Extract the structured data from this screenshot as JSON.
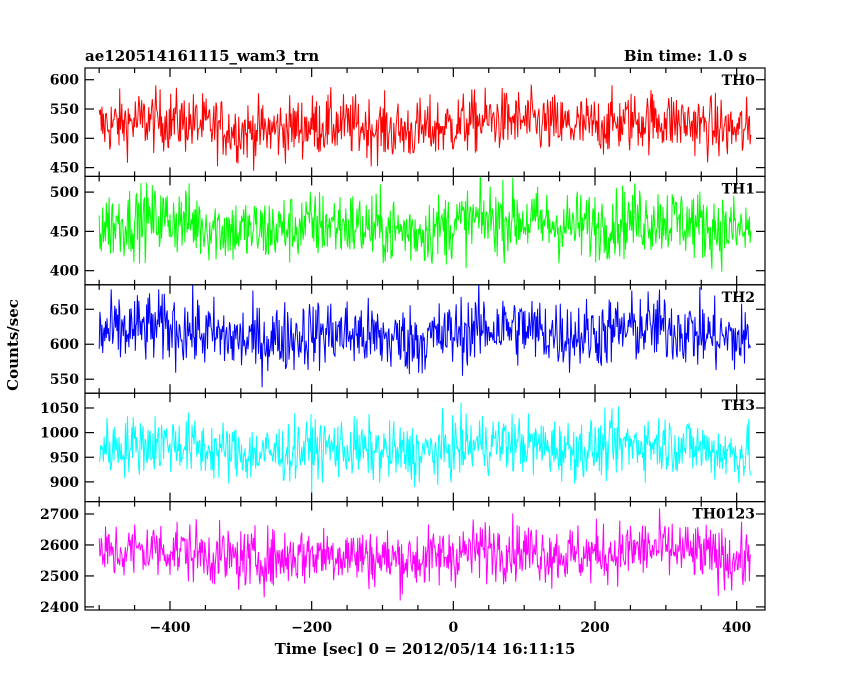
{
  "header": {
    "left_title": "ae120514161115_wam3_trn",
    "right_title": "Bin time: 1.0 s"
  },
  "chart_data": {
    "type": "line",
    "title": "ae120514161115_wam3_trn",
    "subtitle": "Bin time: 1.0 s",
    "xlabel": "Time [sec] 0 = 2012/05/14 16:11:15",
    "ylabel": "Counts/sec",
    "xlim": [
      -520,
      440
    ],
    "data_xrange": [
      -500,
      420
    ],
    "x_ticks": [
      -400,
      -200,
      0,
      200,
      400
    ],
    "x_tick_labels": [
      "−400",
      "−200",
      "0",
      "200",
      "400"
    ],
    "grid": false,
    "panels": [
      {
        "label": "TH0",
        "color": "#ff0000",
        "ylim": [
          435,
          620
        ],
        "yticks": [
          450,
          500,
          550,
          600
        ],
        "mean": 522,
        "spread": 26
      },
      {
        "label": "TH1",
        "color": "#00ff00",
        "ylim": [
          382,
          520
        ],
        "yticks": [
          400,
          450,
          500
        ],
        "mean": 458,
        "spread": 22
      },
      {
        "label": "TH2",
        "color": "#0000ff",
        "ylim": [
          530,
          685
        ],
        "yticks": [
          550,
          600,
          650
        ],
        "mean": 615,
        "spread": 25
      },
      {
        "label": "TH3",
        "color": "#00ffff",
        "ylim": [
          860,
          1080
        ],
        "yticks": [
          900,
          950,
          1000,
          1050
        ],
        "mean": 968,
        "spread": 30
      },
      {
        "label": "TH0123",
        "color": "#ff00ff",
        "ylim": [
          2390,
          2740
        ],
        "yticks": [
          2400,
          2500,
          2600,
          2700
        ],
        "mean": 2570,
        "spread": 48
      }
    ]
  }
}
